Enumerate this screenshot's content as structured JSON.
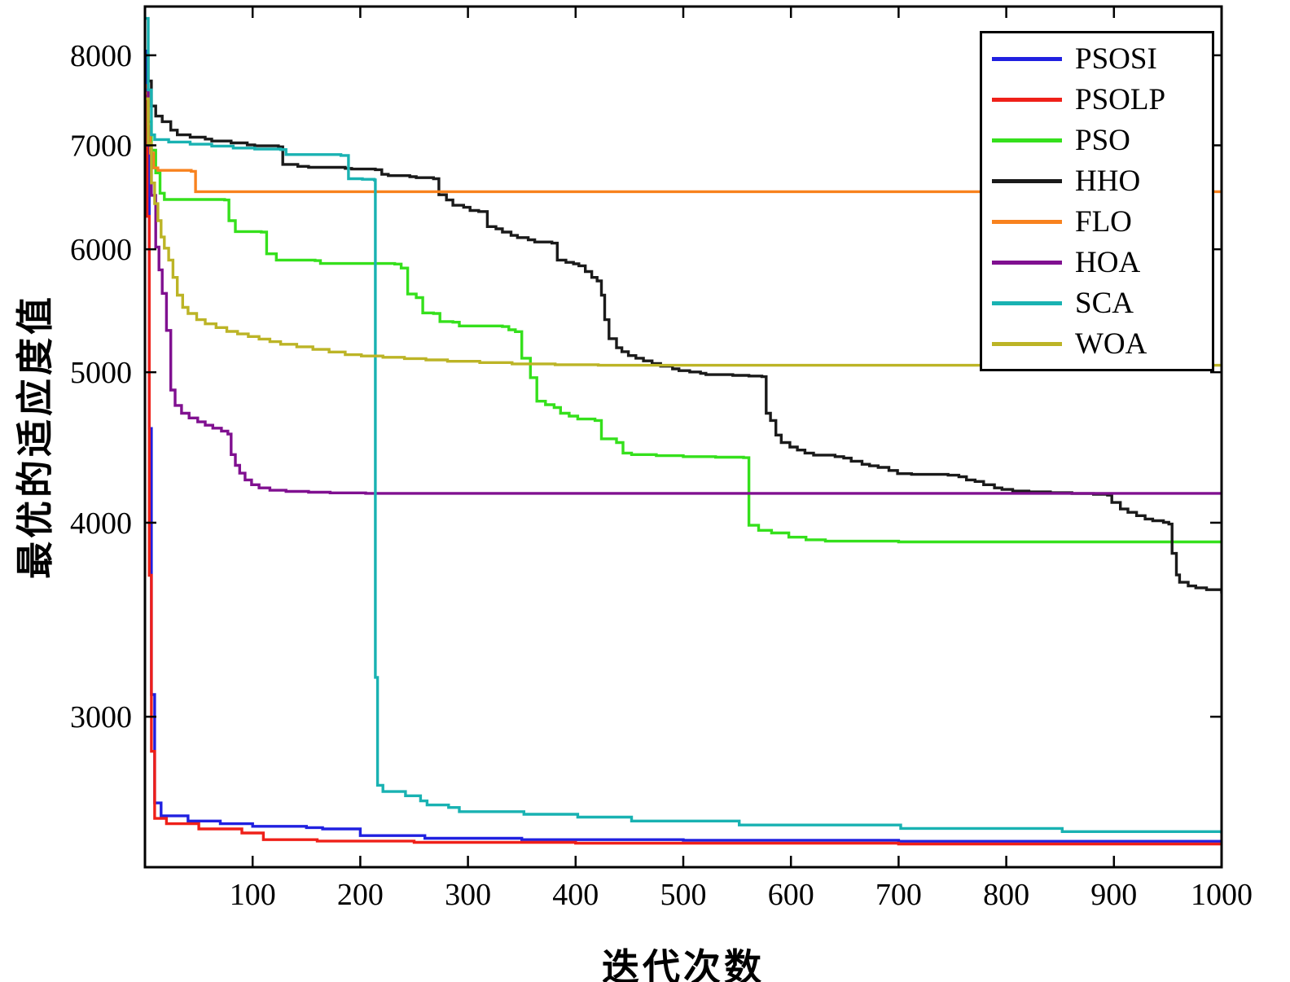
{
  "figure": {
    "background": "#ffffff"
  },
  "chart_data": {
    "type": "line",
    "title": "",
    "xlabel": "迭代次数",
    "ylabel": "最优的适应度值",
    "x_range": [
      0,
      1000
    ],
    "y_range": [
      2400,
      8600
    ],
    "y_scale": "log",
    "x_ticks": [
      100,
      200,
      300,
      400,
      500,
      600,
      700,
      800,
      900,
      1000
    ],
    "y_ticks": [
      3000,
      4000,
      5000,
      6000,
      7000,
      8000
    ],
    "grid": false,
    "legend_position": "top-right",
    "axis_color": "#000000",
    "series": [
      {
        "name": "PSOSI",
        "color": "#2020e0",
        "points": [
          [
            0,
            8050
          ],
          [
            2,
            7000
          ],
          [
            4,
            4600
          ],
          [
            6,
            3100
          ],
          [
            9,
            2640
          ],
          [
            15,
            2590
          ],
          [
            40,
            2570
          ],
          [
            70,
            2560
          ],
          [
            100,
            2550
          ],
          [
            150,
            2545
          ],
          [
            165,
            2540
          ],
          [
            200,
            2515
          ],
          [
            260,
            2505
          ],
          [
            350,
            2500
          ],
          [
            500,
            2498
          ],
          [
            700,
            2494
          ],
          [
            1000,
            2490
          ]
        ]
      },
      {
        "name": "PSOLP",
        "color": "#ef2019",
        "points": [
          [
            0,
            7650
          ],
          [
            2,
            6300
          ],
          [
            4,
            3700
          ],
          [
            6,
            2850
          ],
          [
            9,
            2580
          ],
          [
            20,
            2560
          ],
          [
            50,
            2540
          ],
          [
            90,
            2525
          ],
          [
            110,
            2500
          ],
          [
            160,
            2495
          ],
          [
            250,
            2490
          ],
          [
            400,
            2487
          ],
          [
            700,
            2484
          ],
          [
            1000,
            2483
          ]
        ]
      },
      {
        "name": "PSO",
        "color": "#35e01c",
        "points": [
          [
            0,
            7600
          ],
          [
            3,
            7250
          ],
          [
            6,
            6950
          ],
          [
            10,
            6720
          ],
          [
            14,
            6520
          ],
          [
            18,
            6460
          ],
          [
            74,
            6455
          ],
          [
            78,
            6260
          ],
          [
            84,
            6160
          ],
          [
            108,
            6155
          ],
          [
            113,
            5960
          ],
          [
            122,
            5905
          ],
          [
            158,
            5900
          ],
          [
            163,
            5875
          ],
          [
            232,
            5870
          ],
          [
            238,
            5835
          ],
          [
            244,
            5615
          ],
          [
            252,
            5585
          ],
          [
            258,
            5460
          ],
          [
            268,
            5455
          ],
          [
            274,
            5390
          ],
          [
            286,
            5385
          ],
          [
            292,
            5355
          ],
          [
            332,
            5350
          ],
          [
            338,
            5325
          ],
          [
            344,
            5310
          ],
          [
            350,
            5105
          ],
          [
            358,
            4960
          ],
          [
            364,
            4790
          ],
          [
            372,
            4765
          ],
          [
            380,
            4745
          ],
          [
            386,
            4705
          ],
          [
            394,
            4685
          ],
          [
            402,
            4665
          ],
          [
            418,
            4655
          ],
          [
            424,
            4530
          ],
          [
            438,
            4505
          ],
          [
            444,
            4435
          ],
          [
            452,
            4425
          ],
          [
            475,
            4418
          ],
          [
            500,
            4412
          ],
          [
            530,
            4408
          ],
          [
            556,
            4405
          ],
          [
            561,
            3985
          ],
          [
            570,
            3955
          ],
          [
            582,
            3940
          ],
          [
            598,
            3915
          ],
          [
            614,
            3900
          ],
          [
            632,
            3892
          ],
          [
            700,
            3888
          ],
          [
            1000,
            3886
          ]
        ]
      },
      {
        "name": "HHO",
        "color": "#1a1a1a",
        "points": [
          [
            0,
            8000
          ],
          [
            3,
            7700
          ],
          [
            6,
            7420
          ],
          [
            10,
            7310
          ],
          [
            16,
            7250
          ],
          [
            24,
            7160
          ],
          [
            30,
            7110
          ],
          [
            42,
            7085
          ],
          [
            56,
            7065
          ],
          [
            62,
            7045
          ],
          [
            80,
            7025
          ],
          [
            95,
            7005
          ],
          [
            102,
            6995
          ],
          [
            124,
            6985
          ],
          [
            128,
            6805
          ],
          [
            142,
            6785
          ],
          [
            152,
            6775
          ],
          [
            186,
            6765
          ],
          [
            192,
            6758
          ],
          [
            214,
            6752
          ],
          [
            220,
            6705
          ],
          [
            226,
            6692
          ],
          [
            246,
            6682
          ],
          [
            252,
            6672
          ],
          [
            268,
            6662
          ],
          [
            273,
            6505
          ],
          [
            280,
            6455
          ],
          [
            286,
            6405
          ],
          [
            296,
            6385
          ],
          [
            302,
            6355
          ],
          [
            310,
            6345
          ],
          [
            318,
            6205
          ],
          [
            326,
            6185
          ],
          [
            332,
            6155
          ],
          [
            340,
            6125
          ],
          [
            346,
            6105
          ],
          [
            356,
            6085
          ],
          [
            362,
            6065
          ],
          [
            378,
            6055
          ],
          [
            383,
            5905
          ],
          [
            391,
            5885
          ],
          [
            398,
            5872
          ],
          [
            403,
            5855
          ],
          [
            409,
            5805
          ],
          [
            415,
            5755
          ],
          [
            420,
            5725
          ],
          [
            424,
            5605
          ],
          [
            427,
            5405
          ],
          [
            431,
            5255
          ],
          [
            438,
            5185
          ],
          [
            443,
            5155
          ],
          [
            449,
            5125
          ],
          [
            456,
            5105
          ],
          [
            463,
            5085
          ],
          [
            471,
            5065
          ],
          [
            479,
            5045
          ],
          [
            490,
            5025
          ],
          [
            496,
            5012
          ],
          [
            506,
            5002
          ],
          [
            516,
            4992
          ],
          [
            521,
            4982
          ],
          [
            546,
            4977
          ],
          [
            561,
            4972
          ],
          [
            573,
            4967
          ],
          [
            577,
            4705
          ],
          [
            581,
            4655
          ],
          [
            586,
            4555
          ],
          [
            591,
            4505
          ],
          [
            599,
            4475
          ],
          [
            606,
            4455
          ],
          [
            613,
            4435
          ],
          [
            621,
            4422
          ],
          [
            641,
            4412
          ],
          [
            649,
            4402
          ],
          [
            656,
            4382
          ],
          [
            666,
            4362
          ],
          [
            673,
            4352
          ],
          [
            681,
            4342
          ],
          [
            691,
            4322
          ],
          [
            699,
            4302
          ],
          [
            712,
            4297
          ],
          [
            746,
            4292
          ],
          [
            756,
            4282
          ],
          [
            763,
            4262
          ],
          [
            771,
            4252
          ],
          [
            779,
            4232
          ],
          [
            789,
            4212
          ],
          [
            796,
            4202
          ],
          [
            806,
            4192
          ],
          [
            821,
            4187
          ],
          [
            841,
            4182
          ],
          [
            861,
            4177
          ],
          [
            881,
            4172
          ],
          [
            894,
            4167
          ],
          [
            898,
            4122
          ],
          [
            906,
            4082
          ],
          [
            913,
            4062
          ],
          [
            921,
            4042
          ],
          [
            929,
            4022
          ],
          [
            936,
            4012
          ],
          [
            946,
            4002
          ],
          [
            951,
            3992
          ],
          [
            954,
            3822
          ],
          [
            958,
            3702
          ],
          [
            961,
            3662
          ],
          [
            969,
            3642
          ],
          [
            976,
            3632
          ],
          [
            986,
            3622
          ],
          [
            1000,
            3602
          ]
        ]
      },
      {
        "name": "FLO",
        "color": "#f8821e",
        "points": [
          [
            0,
            7560
          ],
          [
            3,
            7200
          ],
          [
            5,
            6920
          ],
          [
            8,
            6770
          ],
          [
            12,
            6745
          ],
          [
            43,
            6735
          ],
          [
            47,
            6535
          ],
          [
            1000,
            6530
          ]
        ]
      },
      {
        "name": "HOA",
        "color": "#801090",
        "points": [
          [
            0,
            7600
          ],
          [
            3,
            7000
          ],
          [
            6,
            6500
          ],
          [
            10,
            6020
          ],
          [
            13,
            5820
          ],
          [
            16,
            5620
          ],
          [
            20,
            5320
          ],
          [
            24,
            4870
          ],
          [
            28,
            4760
          ],
          [
            34,
            4705
          ],
          [
            41,
            4672
          ],
          [
            49,
            4645
          ],
          [
            56,
            4622
          ],
          [
            63,
            4602
          ],
          [
            71,
            4582
          ],
          [
            77,
            4562
          ],
          [
            80,
            4425
          ],
          [
            84,
            4355
          ],
          [
            88,
            4305
          ],
          [
            93,
            4262
          ],
          [
            99,
            4232
          ],
          [
            106,
            4212
          ],
          [
            116,
            4197
          ],
          [
            131,
            4190
          ],
          [
            152,
            4185
          ],
          [
            172,
            4181
          ],
          [
            205,
            4178
          ],
          [
            1000,
            4175
          ]
        ]
      },
      {
        "name": "SCA",
        "color": "#19b2b2",
        "points": [
          [
            0,
            8450
          ],
          [
            3,
            7600
          ],
          [
            6,
            7110
          ],
          [
            9,
            7060
          ],
          [
            22,
            7035
          ],
          [
            42,
            7012
          ],
          [
            62,
            6992
          ],
          [
            82,
            6972
          ],
          [
            102,
            6962
          ],
          [
            126,
            6956
          ],
          [
            131,
            6905
          ],
          [
            182,
            6896
          ],
          [
            189,
            6662
          ],
          [
            202,
            6656
          ],
          [
            213,
            6650
          ],
          [
            214,
            3180
          ],
          [
            216,
            2710
          ],
          [
            221,
            2685
          ],
          [
            242,
            2668
          ],
          [
            256,
            2648
          ],
          [
            262,
            2632
          ],
          [
            282,
            2622
          ],
          [
            292,
            2606
          ],
          [
            352,
            2596
          ],
          [
            402,
            2585
          ],
          [
            452,
            2570
          ],
          [
            552,
            2555
          ],
          [
            702,
            2542
          ],
          [
            852,
            2530
          ],
          [
            1000,
            2522
          ]
        ]
      },
      {
        "name": "WOA",
        "color": "#bcb426",
        "points": [
          [
            0,
            7500
          ],
          [
            3,
            7020
          ],
          [
            6,
            6620
          ],
          [
            9,
            6420
          ],
          [
            12,
            6260
          ],
          [
            15,
            6110
          ],
          [
            18,
            6010
          ],
          [
            22,
            5905
          ],
          [
            26,
            5755
          ],
          [
            30,
            5605
          ],
          [
            35,
            5505
          ],
          [
            40,
            5455
          ],
          [
            48,
            5405
          ],
          [
            56,
            5372
          ],
          [
            66,
            5342
          ],
          [
            76,
            5312
          ],
          [
            86,
            5292
          ],
          [
            96,
            5272
          ],
          [
            106,
            5252
          ],
          [
            116,
            5232
          ],
          [
            126,
            5212
          ],
          [
            141,
            5192
          ],
          [
            156,
            5172
          ],
          [
            171,
            5152
          ],
          [
            186,
            5132
          ],
          [
            201,
            5122
          ],
          [
            221,
            5112
          ],
          [
            241,
            5102
          ],
          [
            261,
            5092
          ],
          [
            281,
            5082
          ],
          [
            311,
            5072
          ],
          [
            341,
            5062
          ],
          [
            381,
            5056
          ],
          [
            421,
            5052
          ],
          [
            1000,
            5048
          ]
        ]
      }
    ]
  }
}
